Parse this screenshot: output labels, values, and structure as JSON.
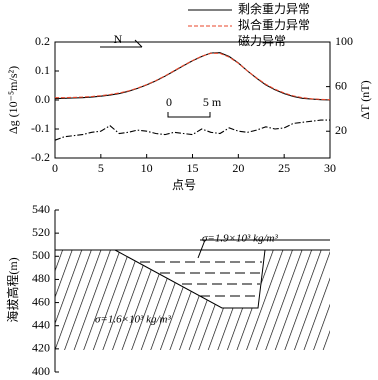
{
  "chart_data": [
    {
      "type": "line",
      "x": [
        0,
        1,
        2,
        3,
        4,
        5,
        6,
        7,
        8,
        9,
        10,
        11,
        12,
        13,
        14,
        15,
        16,
        17,
        18,
        19,
        20,
        21,
        22,
        23,
        24,
        25,
        26,
        27,
        28,
        29,
        30
      ],
      "xlabel": "点号",
      "ylabel": "Δg (10⁻⁵m/s²)",
      "y2label": "ΔT (nT)",
      "xlim": [
        0,
        30
      ],
      "xticks": [
        0,
        5,
        10,
        15,
        20,
        25,
        30
      ],
      "ylim": [
        -0.2,
        0.2
      ],
      "yticks": [
        -0.2,
        -0.1,
        {
          "value": 0,
          "label": "0.0"
        },
        0.1,
        0.2
      ],
      "y2lim": [
        -4,
        100
      ],
      "y2ticks": [
        20,
        60,
        100
      ],
      "series": [
        {
          "name": "剩余重力异常",
          "color": "#000000",
          "dash": "solid",
          "values": [
            0.005,
            0.006,
            0.007,
            0.008,
            0.01,
            0.013,
            0.017,
            0.022,
            0.03,
            0.04,
            0.052,
            0.066,
            0.082,
            0.1,
            0.118,
            0.135,
            0.15,
            0.162,
            0.163,
            0.15,
            0.128,
            0.1,
            0.075,
            0.052,
            0.035,
            0.022,
            0.012,
            0.006,
            0.003,
            0.001,
            0.0
          ]
        },
        {
          "name": "拟合重力异常",
          "color": "#e8462a",
          "dash": "dashed",
          "values": [
            0.008,
            0.008,
            0.009,
            0.01,
            0.012,
            0.015,
            0.019,
            0.024,
            0.031,
            0.041,
            0.053,
            0.067,
            0.083,
            0.101,
            0.119,
            0.136,
            0.151,
            0.161,
            0.161,
            0.148,
            0.127,
            0.1,
            0.076,
            0.054,
            0.037,
            0.024,
            0.014,
            0.008,
            0.004,
            0.002,
            0.001
          ]
        },
        {
          "name": "磁力异常",
          "color": "#000000",
          "dash": "dashdot",
          "axis": "y2",
          "values": [
            12,
            15,
            16,
            17,
            19,
            20,
            25,
            18,
            19,
            21,
            20,
            18,
            17,
            19,
            18,
            17,
            22,
            19,
            18,
            23,
            20,
            19,
            21,
            24,
            22,
            23,
            27,
            28,
            29,
            30,
            30
          ]
        }
      ],
      "annotations": [
        "N",
        "0",
        "5 m"
      ]
    },
    {
      "type": "section",
      "ylabel": "海拔高程(m)",
      "ylim": [
        400,
        540
      ],
      "yticks": [
        400,
        420,
        440,
        460,
        480,
        500,
        520,
        540
      ],
      "annotations": [
        "σ=1.9×10³ kg/m³",
        "σ=1.6×10³ kg/m³"
      ]
    }
  ]
}
